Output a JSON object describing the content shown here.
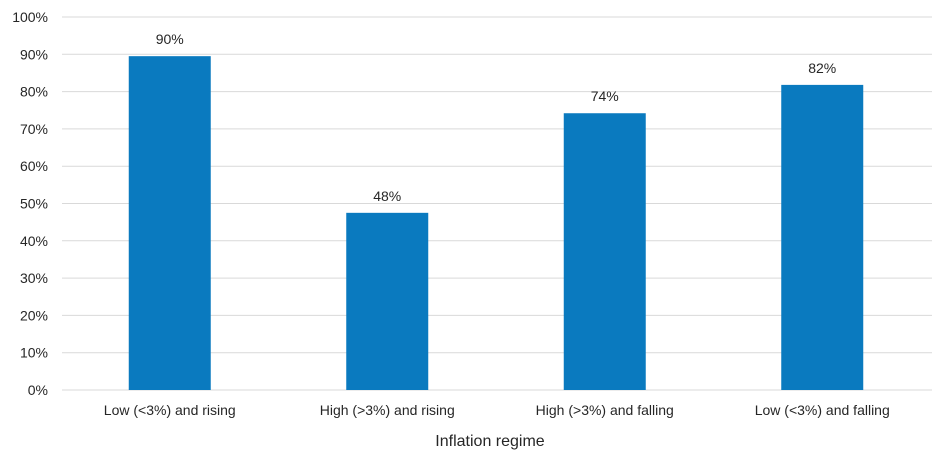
{
  "colors": {
    "bar": "#0a7abf",
    "grid": "#d9d9d9",
    "text": "#262626"
  },
  "chart_data": {
    "type": "bar",
    "title": "",
    "xlabel": "Inflation regime",
    "ylabel": "",
    "categories": [
      "Low (<3%) and rising",
      "High (>3%) and rising",
      "High (>3%) and falling",
      "Low (<3%) and falling"
    ],
    "values": [
      0.895,
      0.475,
      0.742,
      0.818
    ],
    "data_labels": [
      "90%",
      "48%",
      "74%",
      "82%"
    ],
    "ylim": [
      0,
      1
    ],
    "yticks": [
      0,
      0.1,
      0.2,
      0.3,
      0.4,
      0.5,
      0.6,
      0.7,
      0.8,
      0.9,
      1.0
    ],
    "ytick_labels": [
      "0%",
      "10%",
      "20%",
      "30%",
      "40%",
      "50%",
      "60%",
      "70%",
      "80%",
      "90%",
      "100%"
    ],
    "grid": true,
    "legend": "none"
  }
}
